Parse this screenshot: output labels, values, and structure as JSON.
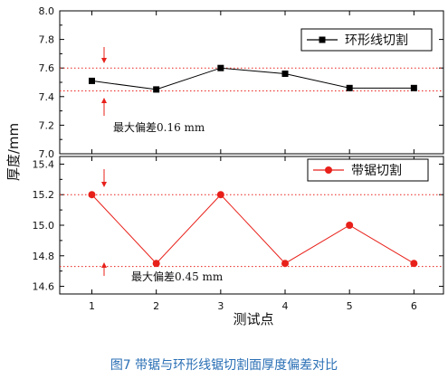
{
  "chart_data": [
    {
      "type": "line",
      "x": [
        1,
        2,
        3,
        4,
        5,
        6
      ],
      "series": [
        {
          "name": "环形线切割",
          "values": [
            7.51,
            7.45,
            7.6,
            7.56,
            7.46,
            7.46
          ],
          "color": "#000000",
          "marker": "square"
        }
      ],
      "ylim": [
        7.0,
        8.0
      ],
      "yticks": [
        "7.0",
        "7.2",
        "7.4",
        "7.6",
        "7.8",
        "8.0"
      ],
      "reference_lines": [
        7.6,
        7.44
      ],
      "reference_color": "#e8201a",
      "annotation": "最大偏差0.16 mm",
      "legend_position": "top-right",
      "grid": false
    },
    {
      "type": "line",
      "x": [
        1,
        2,
        3,
        4,
        5,
        6
      ],
      "xticks": [
        "1",
        "2",
        "3",
        "4",
        "5",
        "6"
      ],
      "series": [
        {
          "name": "带锯切割",
          "values": [
            15.2,
            14.75,
            15.2,
            14.75,
            15.0,
            14.75
          ],
          "color": "#e8201a",
          "marker": "circle"
        }
      ],
      "ylim": [
        14.55,
        15.45
      ],
      "yticks": [
        "14.6",
        "14.8",
        "15.0",
        "15.2",
        "15.4"
      ],
      "reference_lines": [
        15.2,
        14.73
      ],
      "reference_color": "#e8201a",
      "annotation": "最大偏差0.45 mm",
      "legend_position": "top-right",
      "grid": false
    }
  ],
  "axes": {
    "xlabel": "测试点",
    "ylabel": "厚度/mm"
  },
  "caption": "图7   带锯与环形线锯切割面厚度偏差对比"
}
